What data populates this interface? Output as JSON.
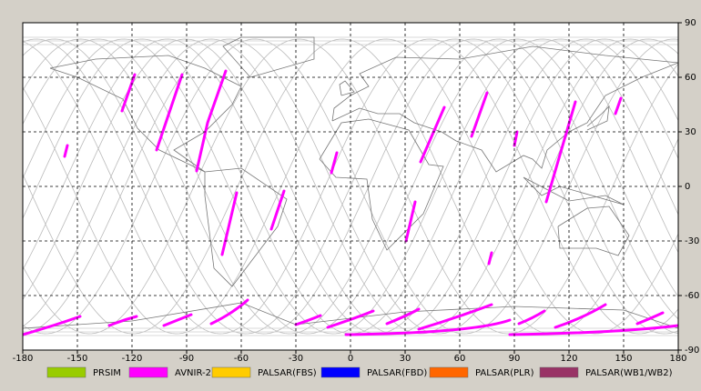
{
  "map": {
    "xlim": [
      -180,
      180
    ],
    "ylim": [
      -90,
      90
    ],
    "xticks": [
      -180,
      -150,
      -120,
      -90,
      -60,
      -30,
      0,
      30,
      60,
      90,
      120,
      150,
      180
    ],
    "yticks": [
      -90,
      -60,
      -30,
      0,
      30,
      60,
      90
    ],
    "grid": true
  },
  "legend": [
    {
      "name": "PRSIM",
      "color": "#99cc00"
    },
    {
      "name": "AVNIR-2",
      "color": "#ff00ff"
    },
    {
      "name": "PALSAR(FBS)",
      "color": "#ffcc00"
    },
    {
      "name": "PALSAR(FBD)",
      "color": "#0000ff"
    },
    {
      "name": "PALSAR(PLR)",
      "color": "#ff6600"
    },
    {
      "name": "PALSAR(WB1/WB2)",
      "color": "#993366"
    }
  ]
}
